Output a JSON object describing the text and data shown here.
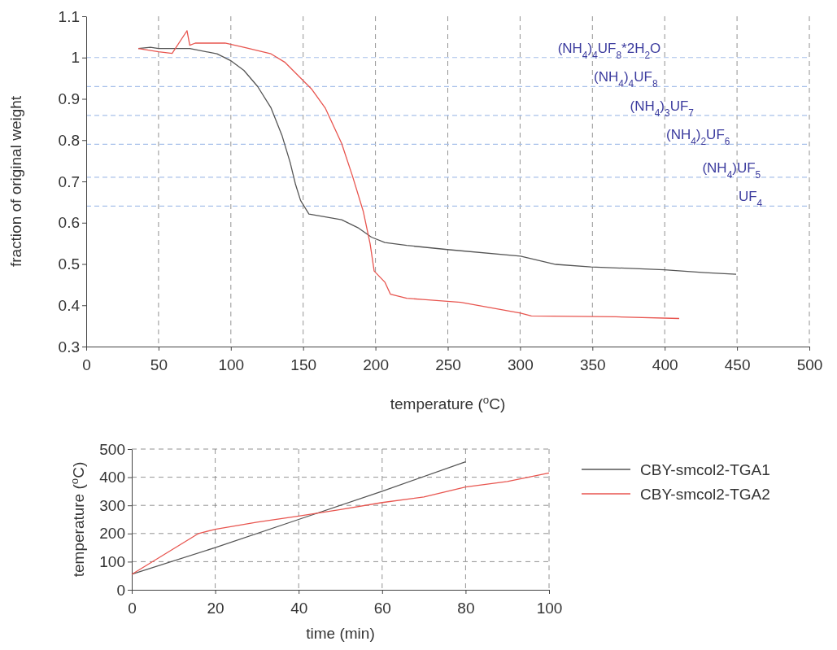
{
  "chart_data": [
    {
      "type": "line",
      "xlabel": "temperature ($^{o}$C)",
      "ylabel": "fraction of original weight",
      "xlim": [
        0,
        500
      ],
      "ylim": [
        0.3,
        1.1
      ],
      "xticks": [
        0,
        50,
        100,
        150,
        200,
        250,
        300,
        350,
        400,
        450,
        500
      ],
      "yticks": [
        0.3,
        0.4,
        0.5,
        0.6,
        0.7,
        0.8,
        0.9,
        1,
        1.1
      ],
      "grid": "x",
      "legend": false,
      "line_style": "solid",
      "series": [
        {
          "color": "#555555",
          "x": [
            36,
            44.4,
            50,
            71.6,
            90.4,
            99.7,
            109,
            118.5,
            127.8,
            135.3,
            141,
            144.7,
            148.2,
            154,
            165.4,
            176.6,
            187.8,
            197.2,
            206.5,
            221.6,
            249.7,
            300.3,
            324.7,
            349,
            399.7,
            427.8,
            449.4
          ],
          "values": [
            1.022,
            1.025,
            1.022,
            1.022,
            1.009,
            0.993,
            0.969,
            0.93,
            0.878,
            0.812,
            0.746,
            0.693,
            0.654,
            0.621,
            0.614,
            0.607,
            0.588,
            0.565,
            0.552,
            0.545,
            0.535,
            0.519,
            0.499,
            0.493,
            0.486,
            0.479,
            0.475
          ]
        },
        {
          "color": "#e8554f",
          "x": [
            36,
            50,
            59.4,
            69.7,
            71.6,
            75.4,
            96,
            109,
            127.8,
            137.2,
            146.6,
            156,
            165.4,
            176.6,
            184.1,
            191.6,
            196.3,
            199.1,
            206.5,
            210.3,
            221.6,
            232.8,
            259,
            300.3,
            307.8,
            366,
            410
          ],
          "values": [
            1.022,
            1.014,
            1.01,
            1.065,
            1.03,
            1.035,
            1.035,
            1.025,
            1.009,
            0.989,
            0.956,
            0.923,
            0.877,
            0.792,
            0.713,
            0.627,
            0.549,
            0.483,
            0.456,
            0.427,
            0.417,
            0.414,
            0.407,
            0.381,
            0.374,
            0.372,
            0.368
          ]
        }
      ],
      "ref_lines": [
        {
          "axis": "y",
          "value": 1.0,
          "label": "(NH$_{4}$)$_{4}$UF$_{8}$*2H$_{2}$O",
          "color": "#a9c1ea",
          "line_style": "dashed"
        },
        {
          "axis": "y",
          "value": 0.93,
          "label": "(NH$_{4}$)$_{4}$UF$_{8}$",
          "color": "#a9c1ea",
          "line_style": "dashed"
        },
        {
          "axis": "y",
          "value": 0.86,
          "label": "(NH$_{4}$)$_{3}$UF$_{7}$",
          "color": "#a9c1ea",
          "line_style": "dashed"
        },
        {
          "axis": "y",
          "value": 0.79,
          "label": "(NH$_{4}$)$_{2}$UF$_{6}$",
          "color": "#a9c1ea",
          "line_style": "dashed"
        },
        {
          "axis": "y",
          "value": 0.71,
          "label": "(NH$_{4}$)UF$_{5}$",
          "color": "#a9c1ea",
          "line_style": "dashed"
        },
        {
          "axis": "y",
          "value": 0.64,
          "label": "UF$_{4}$",
          "color": "#a9c1ea",
          "line_style": "dashed"
        }
      ]
    },
    {
      "type": "line",
      "xlabel": "time (min)",
      "ylabel": "temperature ($^{o}$C)",
      "xlim": [
        0,
        100
      ],
      "ylim": [
        0,
        500
      ],
      "xticks": [
        0,
        20,
        40,
        60,
        80,
        100
      ],
      "yticks": [
        0,
        100,
        200,
        300,
        400,
        500
      ],
      "grid": true,
      "legend": "right",
      "line_style": "solid",
      "series": [
        {
          "name": "CBY-smcol2-TGA1",
          "color": "#555555",
          "x": [
            0,
            20,
            40,
            60,
            80
          ],
          "values": [
            55,
            150,
            250,
            350,
            455
          ]
        },
        {
          "name": "CBY-smcol2-TGA2",
          "color": "#e8554f",
          "x": [
            0,
            16,
            20,
            30,
            40,
            50,
            60,
            70,
            80,
            90,
            100
          ],
          "values": [
            55,
            200,
            215,
            240,
            262,
            285,
            310,
            330,
            365,
            385,
            415
          ]
        }
      ]
    }
  ]
}
